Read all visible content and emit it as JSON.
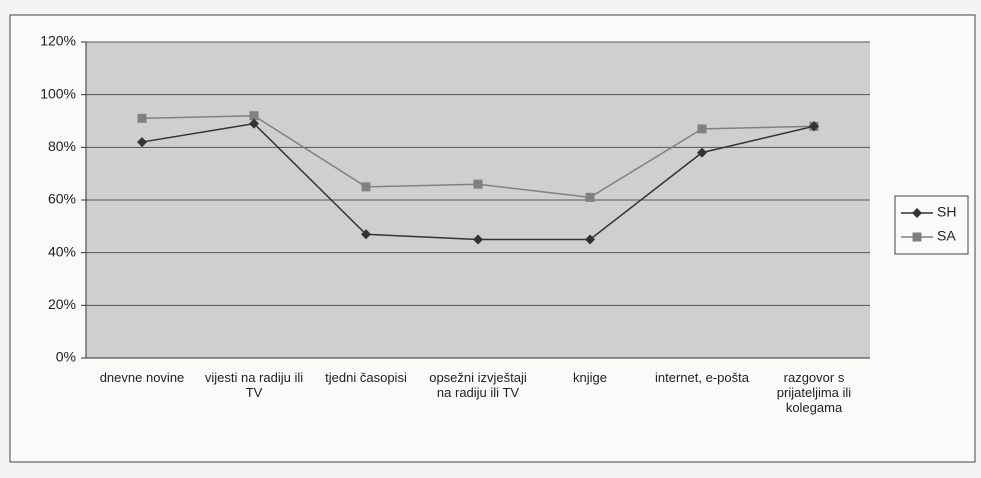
{
  "chart_data": {
    "type": "line",
    "categories": [
      "dnevne novine",
      "vijesti na radiju ili TV",
      "tjedni časopisi",
      "opsežni izvještaji na radiju ili TV",
      "knjige",
      "internet, e-pošta",
      "razgovor s prijateljima ili kolegama"
    ],
    "series": [
      {
        "name": "SH",
        "color": "#333333",
        "marker": "diamond",
        "values": [
          82,
          89,
          47,
          45,
          45,
          78,
          88
        ]
      },
      {
        "name": "SA",
        "color": "#808080",
        "marker": "square",
        "values": [
          91,
          92,
          65,
          66,
          61,
          87,
          88
        ]
      }
    ],
    "ylim": [
      0,
      120
    ],
    "yticks": [
      {
        "value": 0,
        "label": "0%"
      },
      {
        "value": 20,
        "label": "20%"
      },
      {
        "value": 40,
        "label": "40%"
      },
      {
        "value": 60,
        "label": "60%"
      },
      {
        "value": 80,
        "label": "80%"
      },
      {
        "value": 100,
        "label": "100%"
      },
      {
        "value": 120,
        "label": "120%"
      }
    ],
    "grid": true,
    "legend": "right"
  }
}
